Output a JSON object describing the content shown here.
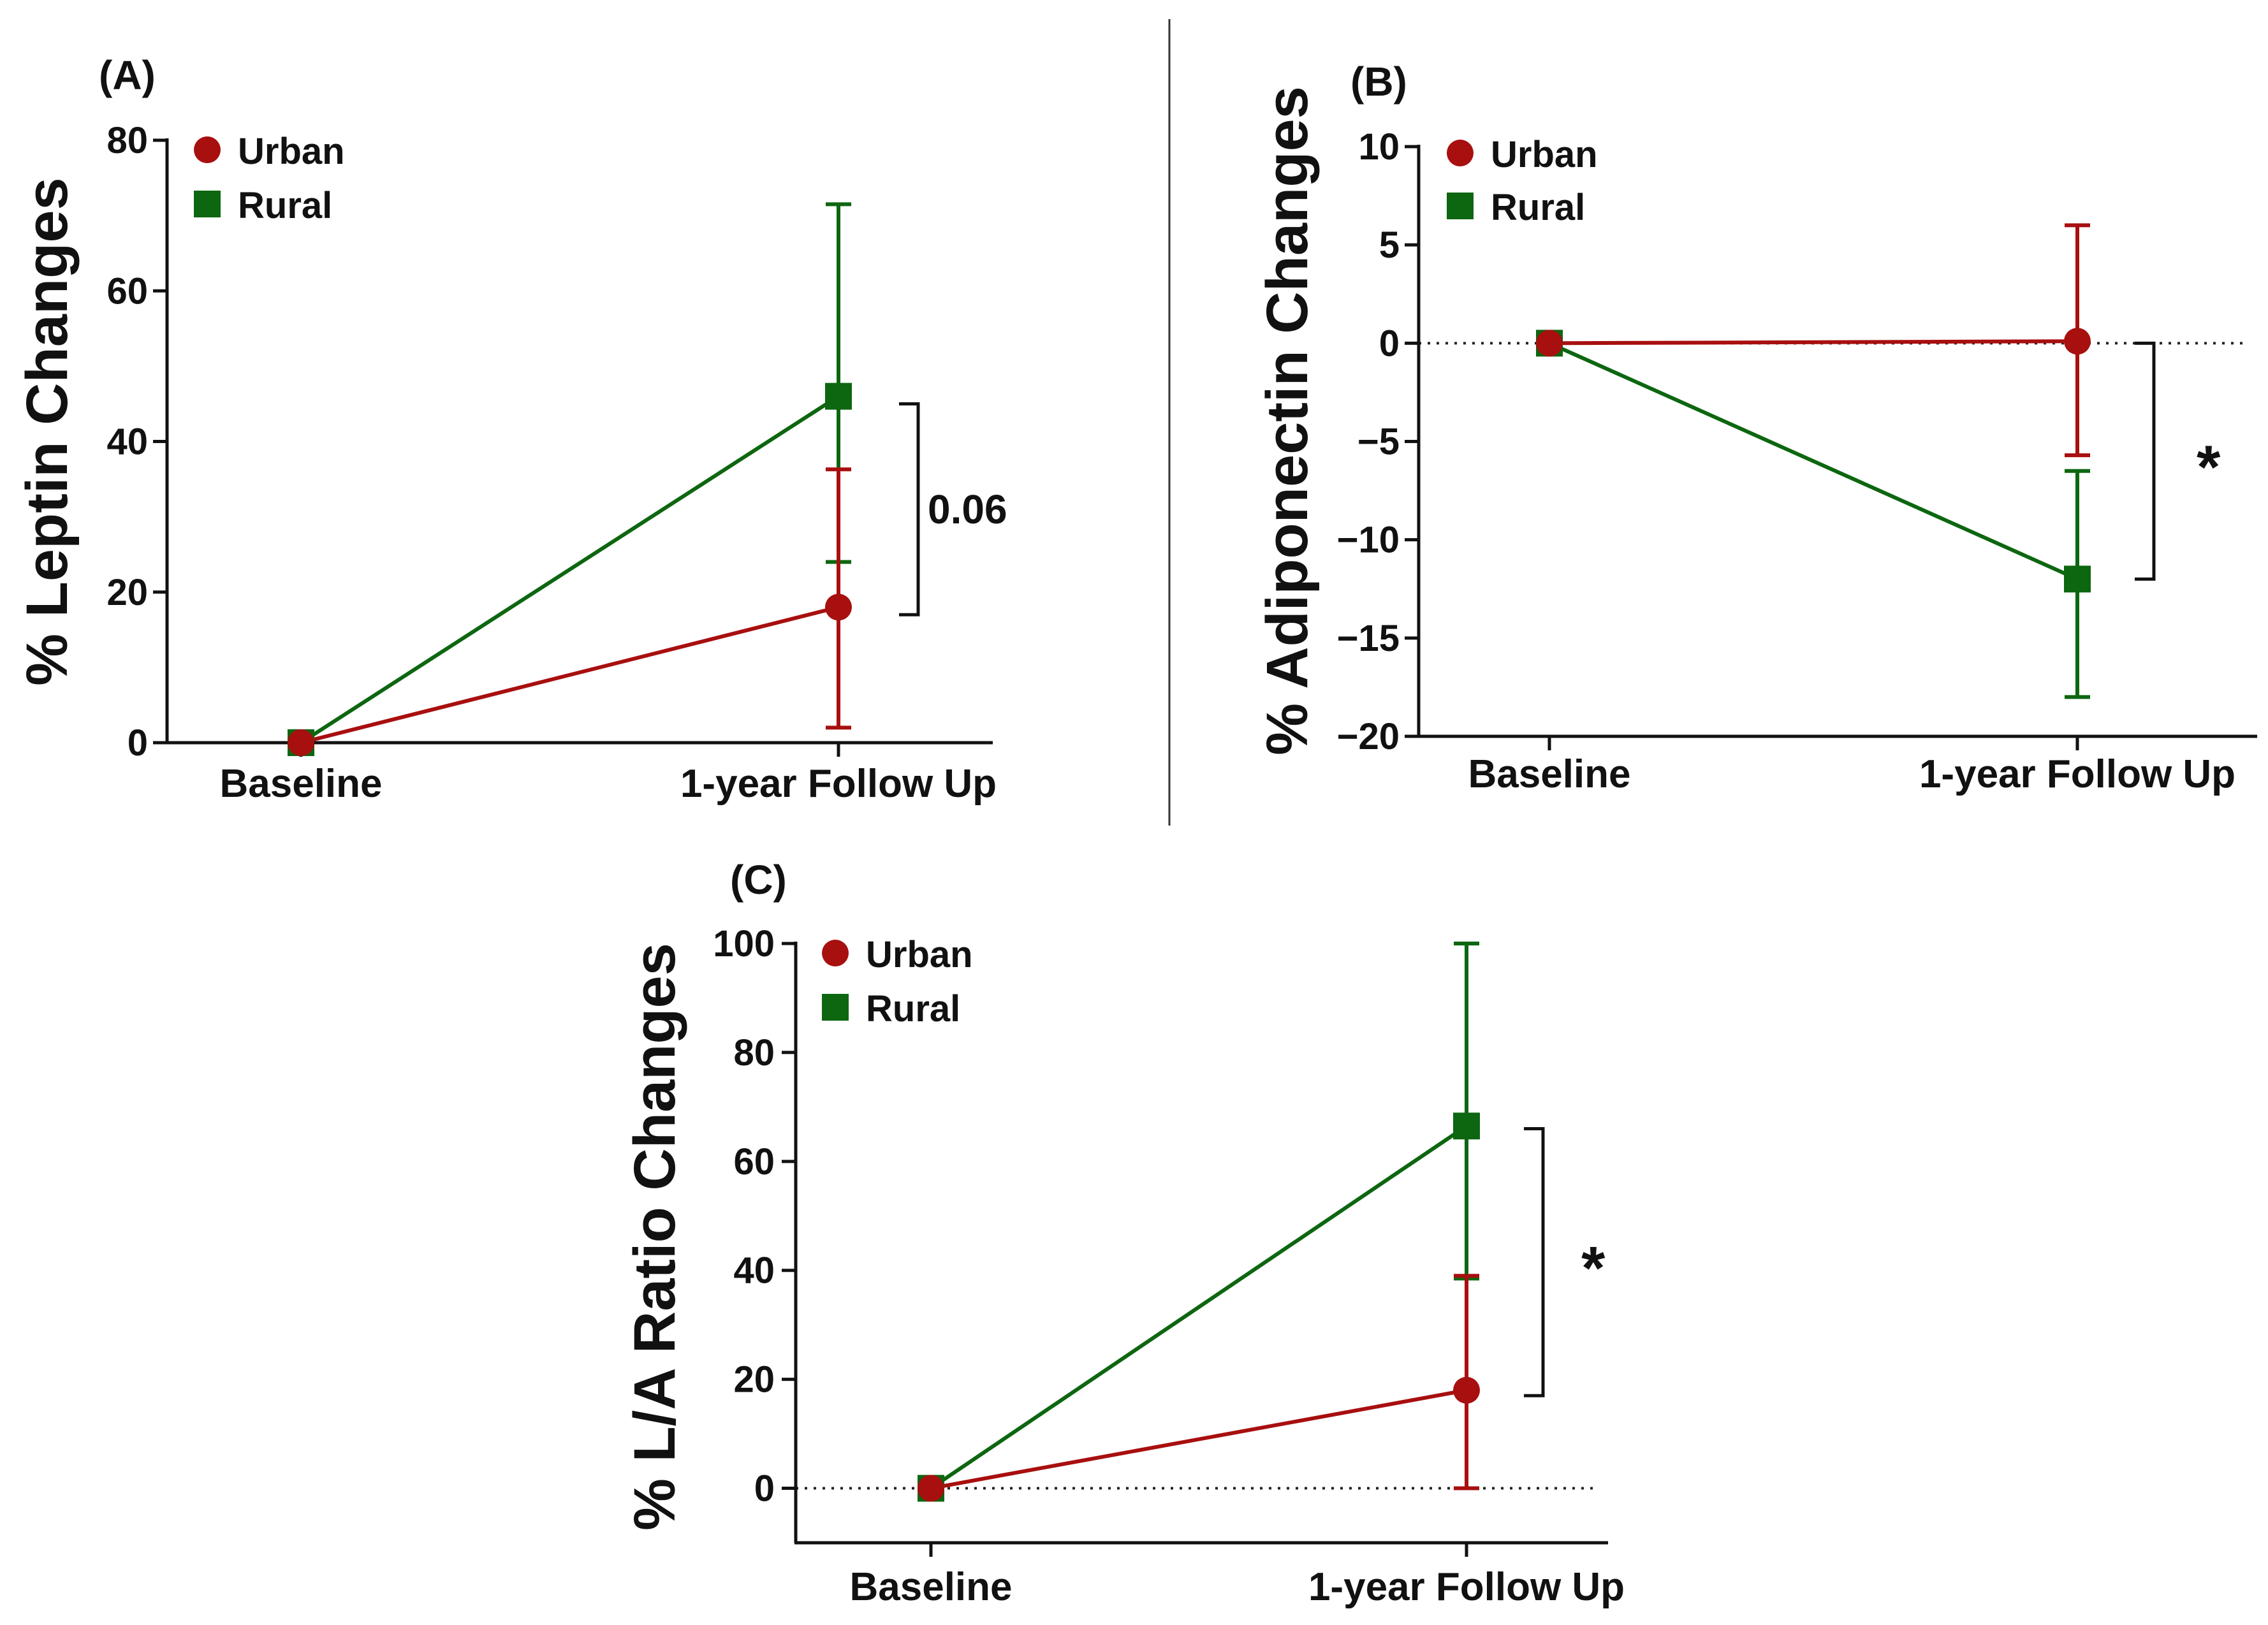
{
  "colors": {
    "urban": "#a80f0f",
    "rural": "#0d6610",
    "axis": "#111111"
  },
  "chart_data": [
    {
      "panel_label": "(A)",
      "type": "line",
      "ylabel": "% Leptin Changes",
      "categories": [
        "Baseline",
        "1-year Follow Up"
      ],
      "ylim": [
        0,
        80
      ],
      "yticks": [
        0,
        20,
        40,
        60,
        80
      ],
      "ytick_labels": [
        "0",
        "20",
        "40",
        "60",
        "80"
      ],
      "zero_line": false,
      "series": [
        {
          "name": "Urban",
          "marker": "circle",
          "values": [
            0,
            18
          ],
          "err_low": [
            0,
            2
          ],
          "err_high": [
            0,
            36.3
          ]
        },
        {
          "name": "Rural",
          "marker": "square",
          "values": [
            0,
            46
          ],
          "err_low": [
            0,
            24
          ],
          "err_high": [
            0,
            71.5
          ]
        }
      ],
      "legend": [
        "Urban",
        "Rural"
      ],
      "legend_position": "top-left",
      "annotation": {
        "text": "0.06",
        "y_range": [
          17,
          45
        ]
      }
    },
    {
      "panel_label": "(B)",
      "type": "line",
      "ylabel": "% Adiponectin Changes",
      "categories": [
        "Baseline",
        "1-year Follow Up"
      ],
      "ylim": [
        -20,
        10
      ],
      "yticks": [
        10,
        5,
        0,
        -5,
        -10,
        -15,
        -20
      ],
      "ytick_labels": [
        "10",
        "5",
        "0",
        "−5",
        "−10",
        "−15",
        "−20"
      ],
      "zero_line": true,
      "series": [
        {
          "name": "Urban",
          "marker": "circle",
          "values": [
            0,
            0.1
          ],
          "err_low": [
            0,
            -5.7
          ],
          "err_high": [
            0,
            6
          ]
        },
        {
          "name": "Rural",
          "marker": "square",
          "values": [
            0,
            -12
          ],
          "err_low": [
            0,
            -18
          ],
          "err_high": [
            0,
            -6.5
          ]
        }
      ],
      "legend": [
        "Urban",
        "Rural"
      ],
      "legend_position": "top-left",
      "annotation": {
        "text": "*",
        "y_range": [
          -12,
          0
        ]
      }
    },
    {
      "panel_label": "(C)",
      "type": "line",
      "ylabel": "% L/A Ratio Changes",
      "categories": [
        "Baseline",
        "1-year Follow Up"
      ],
      "ylim": [
        -10,
        100
      ],
      "yticks": [
        0,
        20,
        40,
        60,
        80,
        100
      ],
      "ytick_labels": [
        "0",
        "20",
        "40",
        "60",
        "80",
        "100"
      ],
      "zero_line": true,
      "series": [
        {
          "name": "Urban",
          "marker": "circle",
          "values": [
            0,
            18
          ],
          "err_low": [
            0,
            0
          ],
          "err_high": [
            0,
            39
          ]
        },
        {
          "name": "Rural",
          "marker": "square",
          "values": [
            0,
            66.5
          ],
          "err_low": [
            0,
            38.5
          ],
          "err_high": [
            0,
            100
          ]
        }
      ],
      "legend": [
        "Urban",
        "Rural"
      ],
      "legend_position": "top-left",
      "annotation": {
        "text": "*",
        "y_range": [
          17,
          66
        ]
      }
    }
  ]
}
